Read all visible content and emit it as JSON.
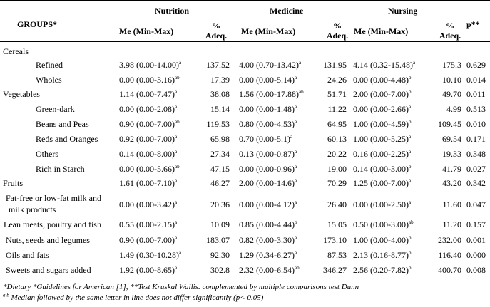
{
  "header": {
    "groups": "GROUPS*",
    "courses": [
      "Nutrition",
      "Medicine",
      "Nursing"
    ],
    "me_label": "Me (Min-Max)",
    "adeq_line1": "%",
    "adeq_line2": "Adeq.",
    "p_label": "p**"
  },
  "rows": [
    {
      "label": "Cereals",
      "level": 0,
      "sec": true
    },
    {
      "label": "Refined",
      "level": 1,
      "vals": [
        [
          "3.98 (0.00-14.00)",
          "a",
          "137.52"
        ],
        [
          "4.00 (0.70-13.42)",
          "a",
          "131.95"
        ],
        [
          "4.14 (0.32-15.48)",
          "a",
          "175.3"
        ]
      ],
      "p": "0.629"
    },
    {
      "label": "Wholes",
      "level": 1,
      "vals": [
        [
          "0.00 (0.00-3.16)",
          "ab",
          "17.39"
        ],
        [
          "0.00 (0.00-5.14)",
          "a",
          "24.26"
        ],
        [
          "0.00 (0.00-4.48)",
          "b",
          "10.10"
        ]
      ],
      "p": "0.014"
    },
    {
      "label": "Vegetables",
      "level": 0,
      "vals": [
        [
          "1.14 (0.00-7.47)",
          "a",
          "38.08"
        ],
        [
          "1.56 (0.00-17.88)",
          "ab",
          "51.71"
        ],
        [
          "2.00 (0.00-7.00)",
          "b",
          "49.70"
        ]
      ],
      "p": "0.011"
    },
    {
      "label": "Green-dark",
      "level": 1,
      "vals": [
        [
          "0.00 (0.00-2.08)",
          "a",
          "15.14"
        ],
        [
          "0.00 (0.00-1.48)",
          "a",
          "11.22"
        ],
        [
          "0.00 (0.00-2.66)",
          "a",
          "4.99"
        ]
      ],
      "p": "0.513"
    },
    {
      "label": "Beans and Peas",
      "level": 1,
      "vals": [
        [
          "0.90 (0.00-7.00)",
          "ab",
          "119.53"
        ],
        [
          "0.80 (0.00-4.53)",
          "a",
          "64.95"
        ],
        [
          "1.00 (0.00-4.59)",
          "b",
          "109.45"
        ]
      ],
      "p": "0.010"
    },
    {
      "label": "Reds and Oranges",
      "level": 1,
      "vals": [
        [
          "0.92 (0.00-7.00)",
          "a",
          "65.98"
        ],
        [
          "0.70 (0.00-5.1)",
          "a",
          "60.13"
        ],
        [
          "1.00 (0.00-5.25)",
          "a",
          "69.54"
        ]
      ],
      "p": "0.171"
    },
    {
      "label": "Others",
      "level": 1,
      "vals": [
        [
          "0.14 (0.00-8.00)",
          "a",
          "27.34"
        ],
        [
          "0.13 (0.00-0.87)",
          "a",
          "20.22"
        ],
        [
          "0.16 (0.00-2.25)",
          "a",
          "19.33"
        ]
      ],
      "p": "0.348"
    },
    {
      "label": "Rich in Starch",
      "level": 1,
      "vals": [
        [
          "0.00 (0.00-5.66)",
          "ab",
          "47.15"
        ],
        [
          "0.00 (0.00-0.96)",
          "a",
          "19.00"
        ],
        [
          "0.14 (0.00-3.00)",
          "b",
          "41.79"
        ]
      ],
      "p": "0.027"
    },
    {
      "label": "Fruits",
      "level": 0,
      "vals": [
        [
          "1.61 (0.00-7.10)",
          "a",
          "46.27"
        ],
        [
          "2.00 (0.00-14.6)",
          "a",
          "70.29"
        ],
        [
          "1.25 (0.00-7.00)",
          "a",
          "43.20"
        ]
      ],
      "p": "0.342"
    },
    {
      "label": "Fat-free or low-fat milk and",
      "label2": "milk products",
      "level": 2,
      "vals": [
        [
          "0.00 (0.00-3.42)",
          "a",
          "20.36"
        ],
        [
          "0.00 (0.00-4.12)",
          "a",
          "26.40"
        ],
        [
          "0.00 (0.00-2.50)",
          "a",
          "11.60"
        ]
      ],
      "p": "0.047"
    },
    {
      "label": "Lean meats, poultry and fish",
      "level": 3,
      "vals": [
        [
          "0.55 (0.00-2.15)",
          "a",
          "10.09"
        ],
        [
          "0.85 (0.00-4.44)",
          "b",
          "15.05"
        ],
        [
          "0.50 (0.00-3.00)",
          "ab",
          "11.20"
        ]
      ],
      "p": "0.157"
    },
    {
      "label": "Nuts, seeds and legumes",
      "level": 2,
      "vals": [
        [
          "0.90 (0.00-7.00)",
          "a",
          "183.07"
        ],
        [
          "0.82 (0.00-3.30)",
          "a",
          "173.10"
        ],
        [
          "1.00 (0.00-4.00)",
          "b",
          "232.00"
        ]
      ],
      "p": "0.001"
    },
    {
      "label": "Oils and fats",
      "level": 2,
      "vals": [
        [
          "1.49 (0.30-10.28)",
          "a",
          "92.30"
        ],
        [
          "1.29 (0.34-6.27)",
          "a",
          "87.53"
        ],
        [
          "2.13 (0.16-8.77)",
          "b",
          "116.40"
        ]
      ],
      "p": "0.000"
    },
    {
      "label": "Sweets and sugars added",
      "level": 2,
      "vals": [
        [
          "1.92 (0.00-8.65)",
          "a",
          "302.8"
        ],
        [
          "2.32 (0.00-6.54)",
          "ab",
          "346.27"
        ],
        [
          "2.56 (0.20-7.82)",
          "b",
          "400.70"
        ]
      ],
      "p": "0.008"
    }
  ],
  "footnotes": {
    "line1": "*Dietary *Guidelines for American [1], **Test Kruskal Wallis. complemented by multiple comparisons test Dunn",
    "line2_sup": "a b",
    "line2": " Median followed by the same letter in line does not differ significantly  (p< 0.05)"
  }
}
